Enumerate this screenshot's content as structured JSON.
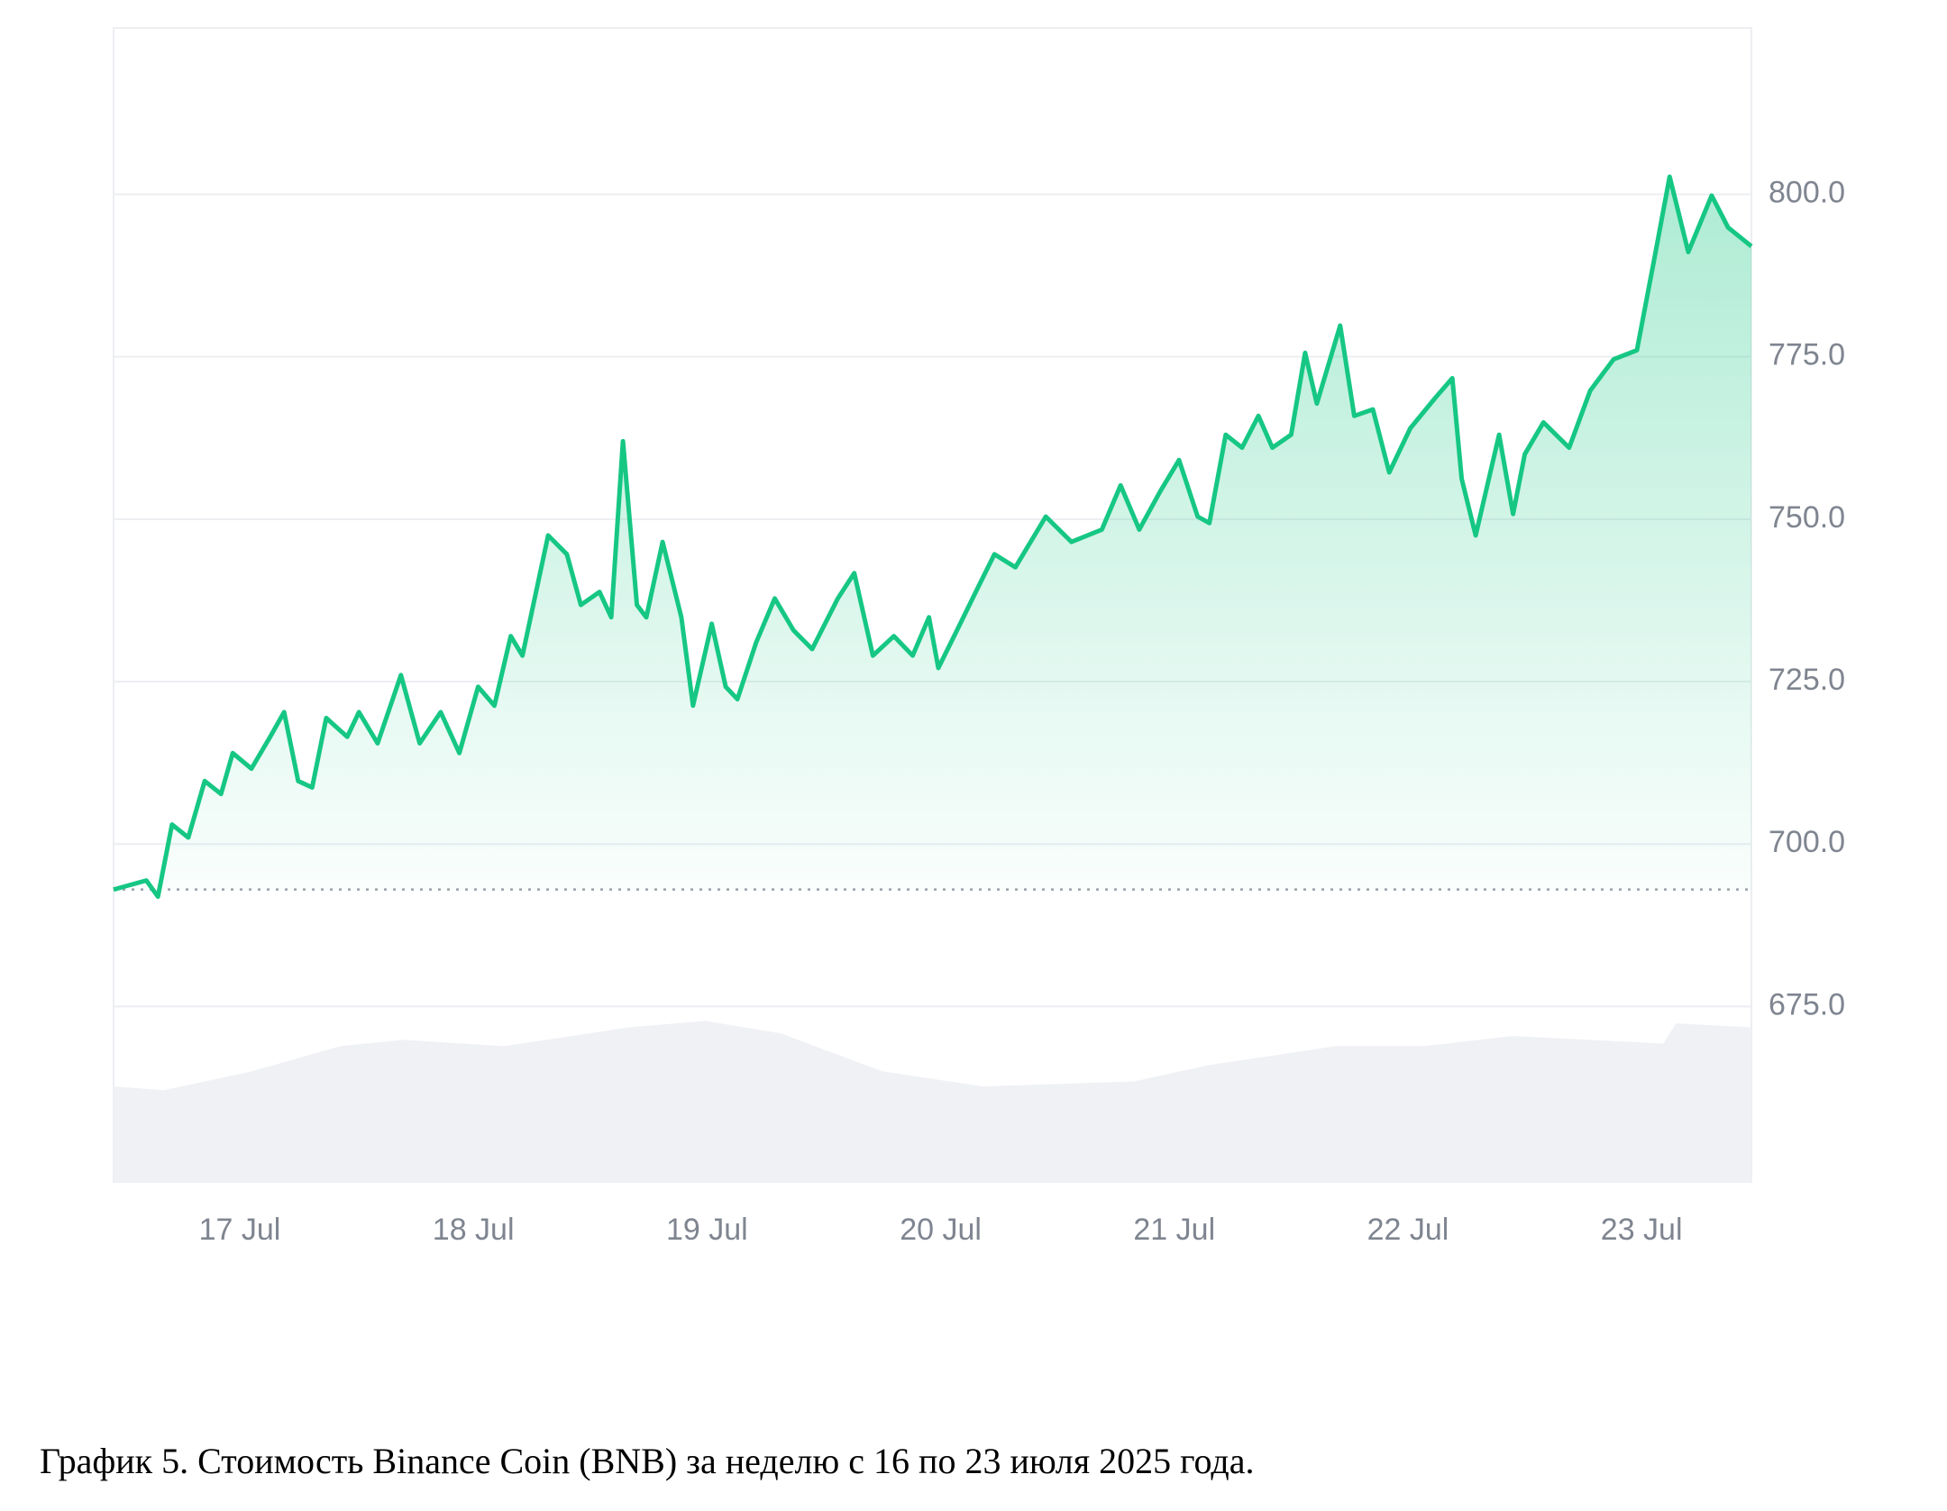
{
  "chart_data": {
    "type": "line",
    "caption": "График 5. Стоимость Binance Coin (BNB) за неделю с 16 по 23 июля 2025 года.",
    "color": "#16c784",
    "x": [
      16.46,
      16.6,
      16.65,
      16.71,
      16.78,
      16.85,
      16.92,
      16.97,
      17.05,
      17.13,
      17.19,
      17.25,
      17.31,
      17.37,
      17.46,
      17.51,
      17.59,
      17.69,
      17.77,
      17.86,
      17.94,
      18.02,
      18.09,
      18.16,
      18.21,
      18.32,
      18.4,
      18.46,
      18.54,
      18.59,
      18.64,
      18.7,
      18.74,
      18.81,
      18.89,
      18.94,
      19.02,
      19.08,
      19.13,
      19.21,
      19.29,
      19.37,
      19.45,
      19.56,
      19.63,
      19.71,
      19.8,
      19.88,
      19.95,
      19.99,
      20.07,
      20.15,
      20.23,
      20.32,
      20.45,
      20.56,
      20.69,
      20.77,
      20.85,
      20.94,
      21.02,
      21.1,
      21.15,
      21.22,
      21.29,
      21.36,
      21.42,
      21.5,
      21.56,
      21.61,
      21.71,
      21.77,
      21.85,
      21.92,
      22.01,
      22.12,
      22.19,
      22.23,
      22.29,
      22.39,
      22.45,
      22.5,
      22.58,
      22.69,
      22.78,
      22.88,
      22.98,
      23.06,
      23.12,
      23.2,
      23.3,
      23.37,
      23.47
    ],
    "values": [
      693.0,
      694.4,
      691.9,
      703.0,
      701.0,
      709.7,
      707.7,
      714.0,
      711.6,
      716.5,
      720.3,
      709.7,
      708.7,
      719.4,
      716.5,
      720.3,
      715.5,
      726.0,
      715.5,
      720.3,
      714.0,
      724.2,
      721.3,
      732.0,
      729.0,
      747.5,
      744.6,
      736.8,
      738.8,
      734.9,
      762.0,
      736.8,
      734.9,
      746.5,
      734.9,
      721.3,
      733.9,
      724.2,
      722.3,
      731.0,
      737.8,
      732.9,
      730.0,
      737.8,
      741.7,
      729.0,
      732.0,
      729.0,
      734.9,
      727.1,
      732.9,
      738.8,
      744.6,
      742.6,
      750.4,
      746.5,
      748.4,
      755.2,
      748.4,
      754.3,
      759.1,
      750.4,
      749.4,
      763.0,
      761.0,
      765.9,
      761.0,
      763.0,
      775.6,
      767.8,
      779.8,
      765.9,
      766.9,
      757.2,
      764.0,
      768.8,
      771.7,
      756.2,
      747.5,
      763.0,
      750.8,
      760.0,
      764.9,
      761.0,
      769.8,
      774.6,
      776.0,
      791.1,
      802.7,
      791.1,
      799.8,
      794.9,
      792.0
    ],
    "xlim": [
      16.46,
      23.47
    ],
    "xticks": [
      {
        "value": 17,
        "label": "17 Jul"
      },
      {
        "value": 18,
        "label": "18 Jul"
      },
      {
        "value": 19,
        "label": "19 Jul"
      },
      {
        "value": 20,
        "label": "20 Jul"
      },
      {
        "value": 21,
        "label": "21 Jul"
      },
      {
        "value": 22,
        "label": "22 Jul"
      },
      {
        "value": 23,
        "label": "23 Jul"
      }
    ],
    "ylim": [
      648,
      825.6
    ],
    "yticks": [
      {
        "value": 675,
        "label": "675.0"
      },
      {
        "value": 700,
        "label": "700.0"
      },
      {
        "value": 725,
        "label": "725.0"
      },
      {
        "value": 750,
        "label": "750.0"
      },
      {
        "value": 775,
        "label": "775.0"
      },
      {
        "value": 800,
        "label": "800.0"
      }
    ],
    "grid": true
  }
}
